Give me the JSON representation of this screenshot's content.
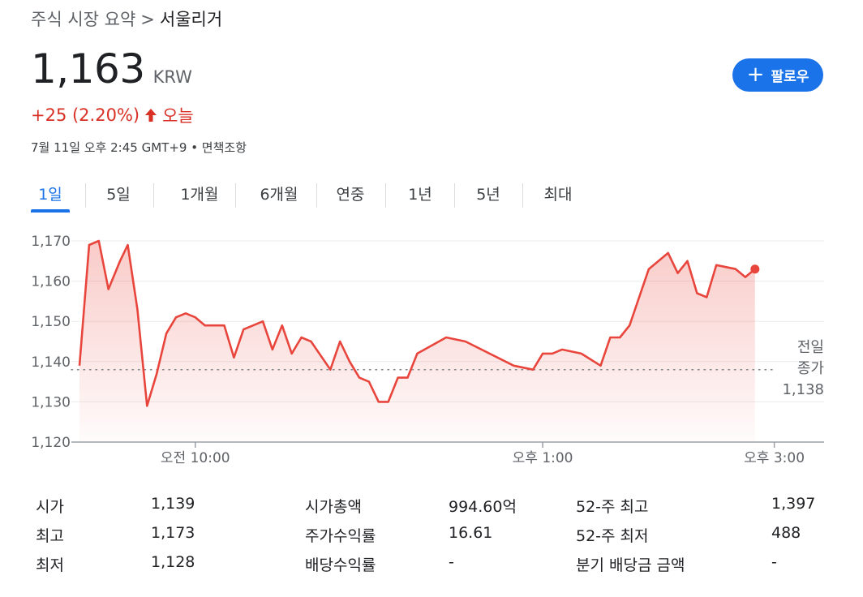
{
  "breadcrumb": {
    "parent": "주식 시장 요약",
    "separator": ">",
    "current": "서울리거"
  },
  "quote": {
    "price": "1,163",
    "currency": "KRW",
    "change": "+25 (2.20%)",
    "period": "오늘",
    "timestamp": "7월 11일 오후 2:45 GMT+9 • 면책조항"
  },
  "follow_button": {
    "label": "팔로우",
    "color": "#1a73e8"
  },
  "tabs": [
    {
      "label": "1일",
      "active": true
    },
    {
      "label": "5일",
      "active": false
    },
    {
      "label": "1개월",
      "active": false
    },
    {
      "label": "6개월",
      "active": false
    },
    {
      "label": "연중",
      "active": false
    },
    {
      "label": "1년",
      "active": false
    },
    {
      "label": "5년",
      "active": false
    },
    {
      "label": "최대",
      "active": false
    }
  ],
  "chart_data": {
    "type": "area",
    "line_color": "#e8453c",
    "y_ticks": [
      "1,170",
      "1,160",
      "1,150",
      "1,140",
      "1,130",
      "1,120"
    ],
    "ylim": [
      1120,
      1170
    ],
    "x_ticks": [
      "오전 10:00",
      "오후 1:00",
      "오후 3:00"
    ],
    "x_tick_minutes": [
      600,
      780,
      900
    ],
    "x_range_minutes": [
      540,
      930
    ],
    "previous_close": {
      "label_line1": "전일",
      "label_line2": "종가",
      "value": "1,138",
      "numeric": 1138
    },
    "series": [
      {
        "points": [
          [
            540,
            1139
          ],
          [
            545,
            1169
          ],
          [
            550,
            1170
          ],
          [
            555,
            1158
          ],
          [
            561,
            1165
          ],
          [
            565,
            1169
          ],
          [
            570,
            1153
          ],
          [
            575,
            1129
          ],
          [
            580,
            1137
          ],
          [
            585,
            1147
          ],
          [
            590,
            1151
          ],
          [
            595,
            1152
          ],
          [
            600,
            1151
          ],
          [
            605,
            1149
          ],
          [
            615,
            1149
          ],
          [
            620,
            1141
          ],
          [
            625,
            1148
          ],
          [
            635,
            1150
          ],
          [
            640,
            1143
          ],
          [
            645,
            1149
          ],
          [
            650,
            1142
          ],
          [
            655,
            1146
          ],
          [
            660,
            1145
          ],
          [
            670,
            1138
          ],
          [
            675,
            1145
          ],
          [
            680,
            1140
          ],
          [
            685,
            1136
          ],
          [
            690,
            1135
          ],
          [
            695,
            1130
          ],
          [
            700,
            1130
          ],
          [
            705,
            1136
          ],
          [
            710,
            1136
          ],
          [
            715,
            1142
          ],
          [
            730,
            1146
          ],
          [
            740,
            1145
          ],
          [
            765,
            1139
          ],
          [
            775,
            1138
          ],
          [
            780,
            1142
          ],
          [
            785,
            1142
          ],
          [
            790,
            1143
          ],
          [
            800,
            1142
          ],
          [
            810,
            1139
          ],
          [
            815,
            1146
          ],
          [
            820,
            1146
          ],
          [
            825,
            1149
          ],
          [
            835,
            1163
          ],
          [
            845,
            1167
          ],
          [
            850,
            1162
          ],
          [
            855,
            1165
          ],
          [
            860,
            1157
          ],
          [
            865,
            1156
          ],
          [
            870,
            1164
          ],
          [
            880,
            1163
          ],
          [
            885,
            1161
          ],
          [
            890,
            1163
          ]
        ]
      }
    ],
    "current_point": [
      890,
      1163
    ]
  },
  "stats": {
    "col1": [
      {
        "label": "시가",
        "value": "1,139"
      },
      {
        "label": "최고",
        "value": "1,173"
      },
      {
        "label": "최저",
        "value": "1,128"
      }
    ],
    "col2": [
      {
        "label": "시가총액",
        "value": "994.60억"
      },
      {
        "label": "주가수익률",
        "value": "16.61"
      },
      {
        "label": "배당수익률",
        "value": "-"
      }
    ],
    "col3": [
      {
        "label": "52-주 최고",
        "value": "1,397"
      },
      {
        "label": "52-주 최저",
        "value": "488"
      },
      {
        "label": "분기 배당금 금액",
        "value": "-"
      }
    ]
  }
}
